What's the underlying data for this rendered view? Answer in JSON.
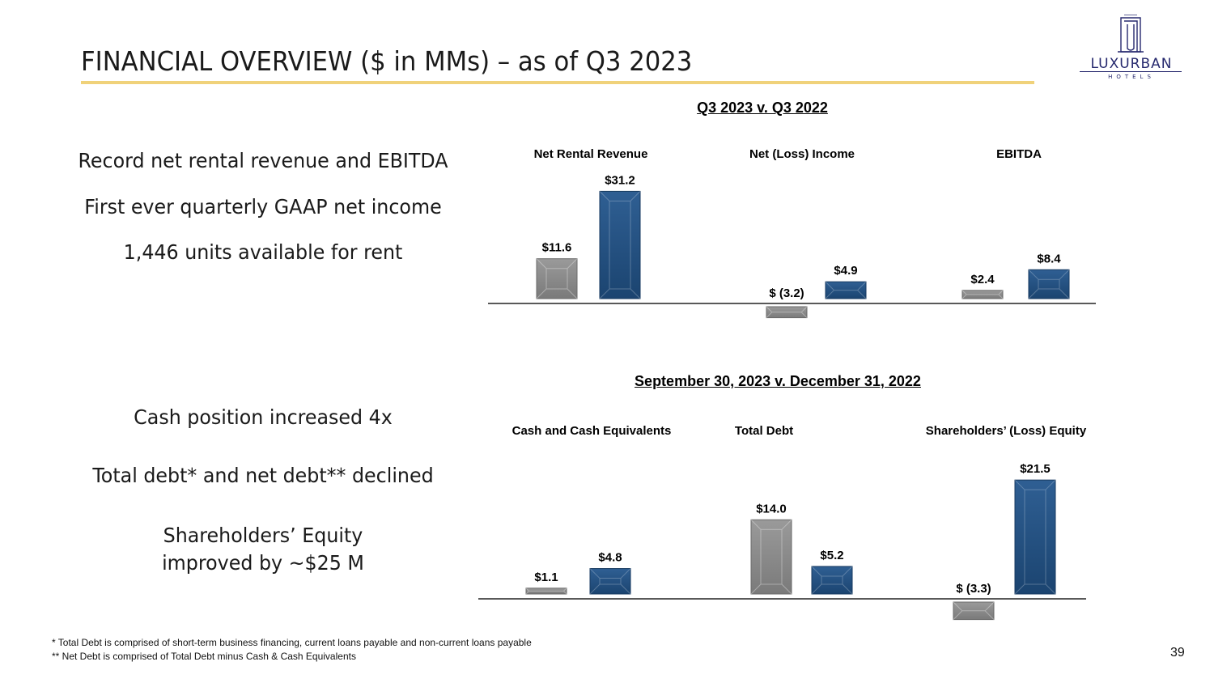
{
  "slide": {
    "title": "FINANCIAL OVERVIEW ($ in MMs) – as of Q3 2023",
    "page_number": "39",
    "logo": {
      "name": "LUXURBAN",
      "sub": "HOTELS"
    },
    "bullets_top": [
      "Record net rental revenue and EBITDA",
      "First ever quarterly GAAP net income",
      "1,446 units available for rent"
    ],
    "bullets_bottom": [
      "Cash position increased 4x",
      "Total debt* and net debt** declined",
      "Shareholders’ Equity improved by ~$25 M"
    ],
    "footnotes": [
      "*  Total Debt is comprised of short-term business financing, current loans payable and non-current loans payable",
      "**  Net Debt is comprised of Total Debt minus Cash & Cash Equivalents"
    ],
    "colors": {
      "prior": "#8a8a8a",
      "current": "#1f4e7d",
      "accent_rule": "#f0d27a",
      "logo": "#26296e"
    }
  },
  "chart_data": [
    {
      "type": "bar",
      "title": "Q3 2023 v. Q3 2022",
      "ylim": [
        -3.8,
        31.2
      ],
      "groups": [
        {
          "category": "Net Rental Revenue",
          "values": [
            11.6,
            31.2
          ],
          "labels": [
            "$11.6",
            "$31.2"
          ]
        },
        {
          "category": "Net (Loss) Income",
          "values": [
            -3.2,
            4.9
          ],
          "labels": [
            "$ (3.2)",
            "$4.9"
          ]
        },
        {
          "category": "EBITDA",
          "values": [
            2.4,
            8.4
          ],
          "labels": [
            "$2.4",
            "$8.4"
          ]
        }
      ]
    },
    {
      "type": "bar",
      "title": "September 30, 2023 v. December 31, 2022",
      "ylim": [
        -3.9,
        21.5
      ],
      "groups": [
        {
          "category": "Cash and Cash Equivalents",
          "values": [
            1.1,
            4.8
          ],
          "labels": [
            "$1.1",
            "$4.8"
          ]
        },
        {
          "category": "Total Debt",
          "values": [
            14.0,
            5.2
          ],
          "labels": [
            "$14.0",
            "$5.2"
          ]
        },
        {
          "category": "Shareholders’ (Loss) Equity",
          "values": [
            -3.3,
            21.5
          ],
          "labels": [
            "$ (3.3)",
            "$21.5"
          ]
        }
      ]
    }
  ]
}
